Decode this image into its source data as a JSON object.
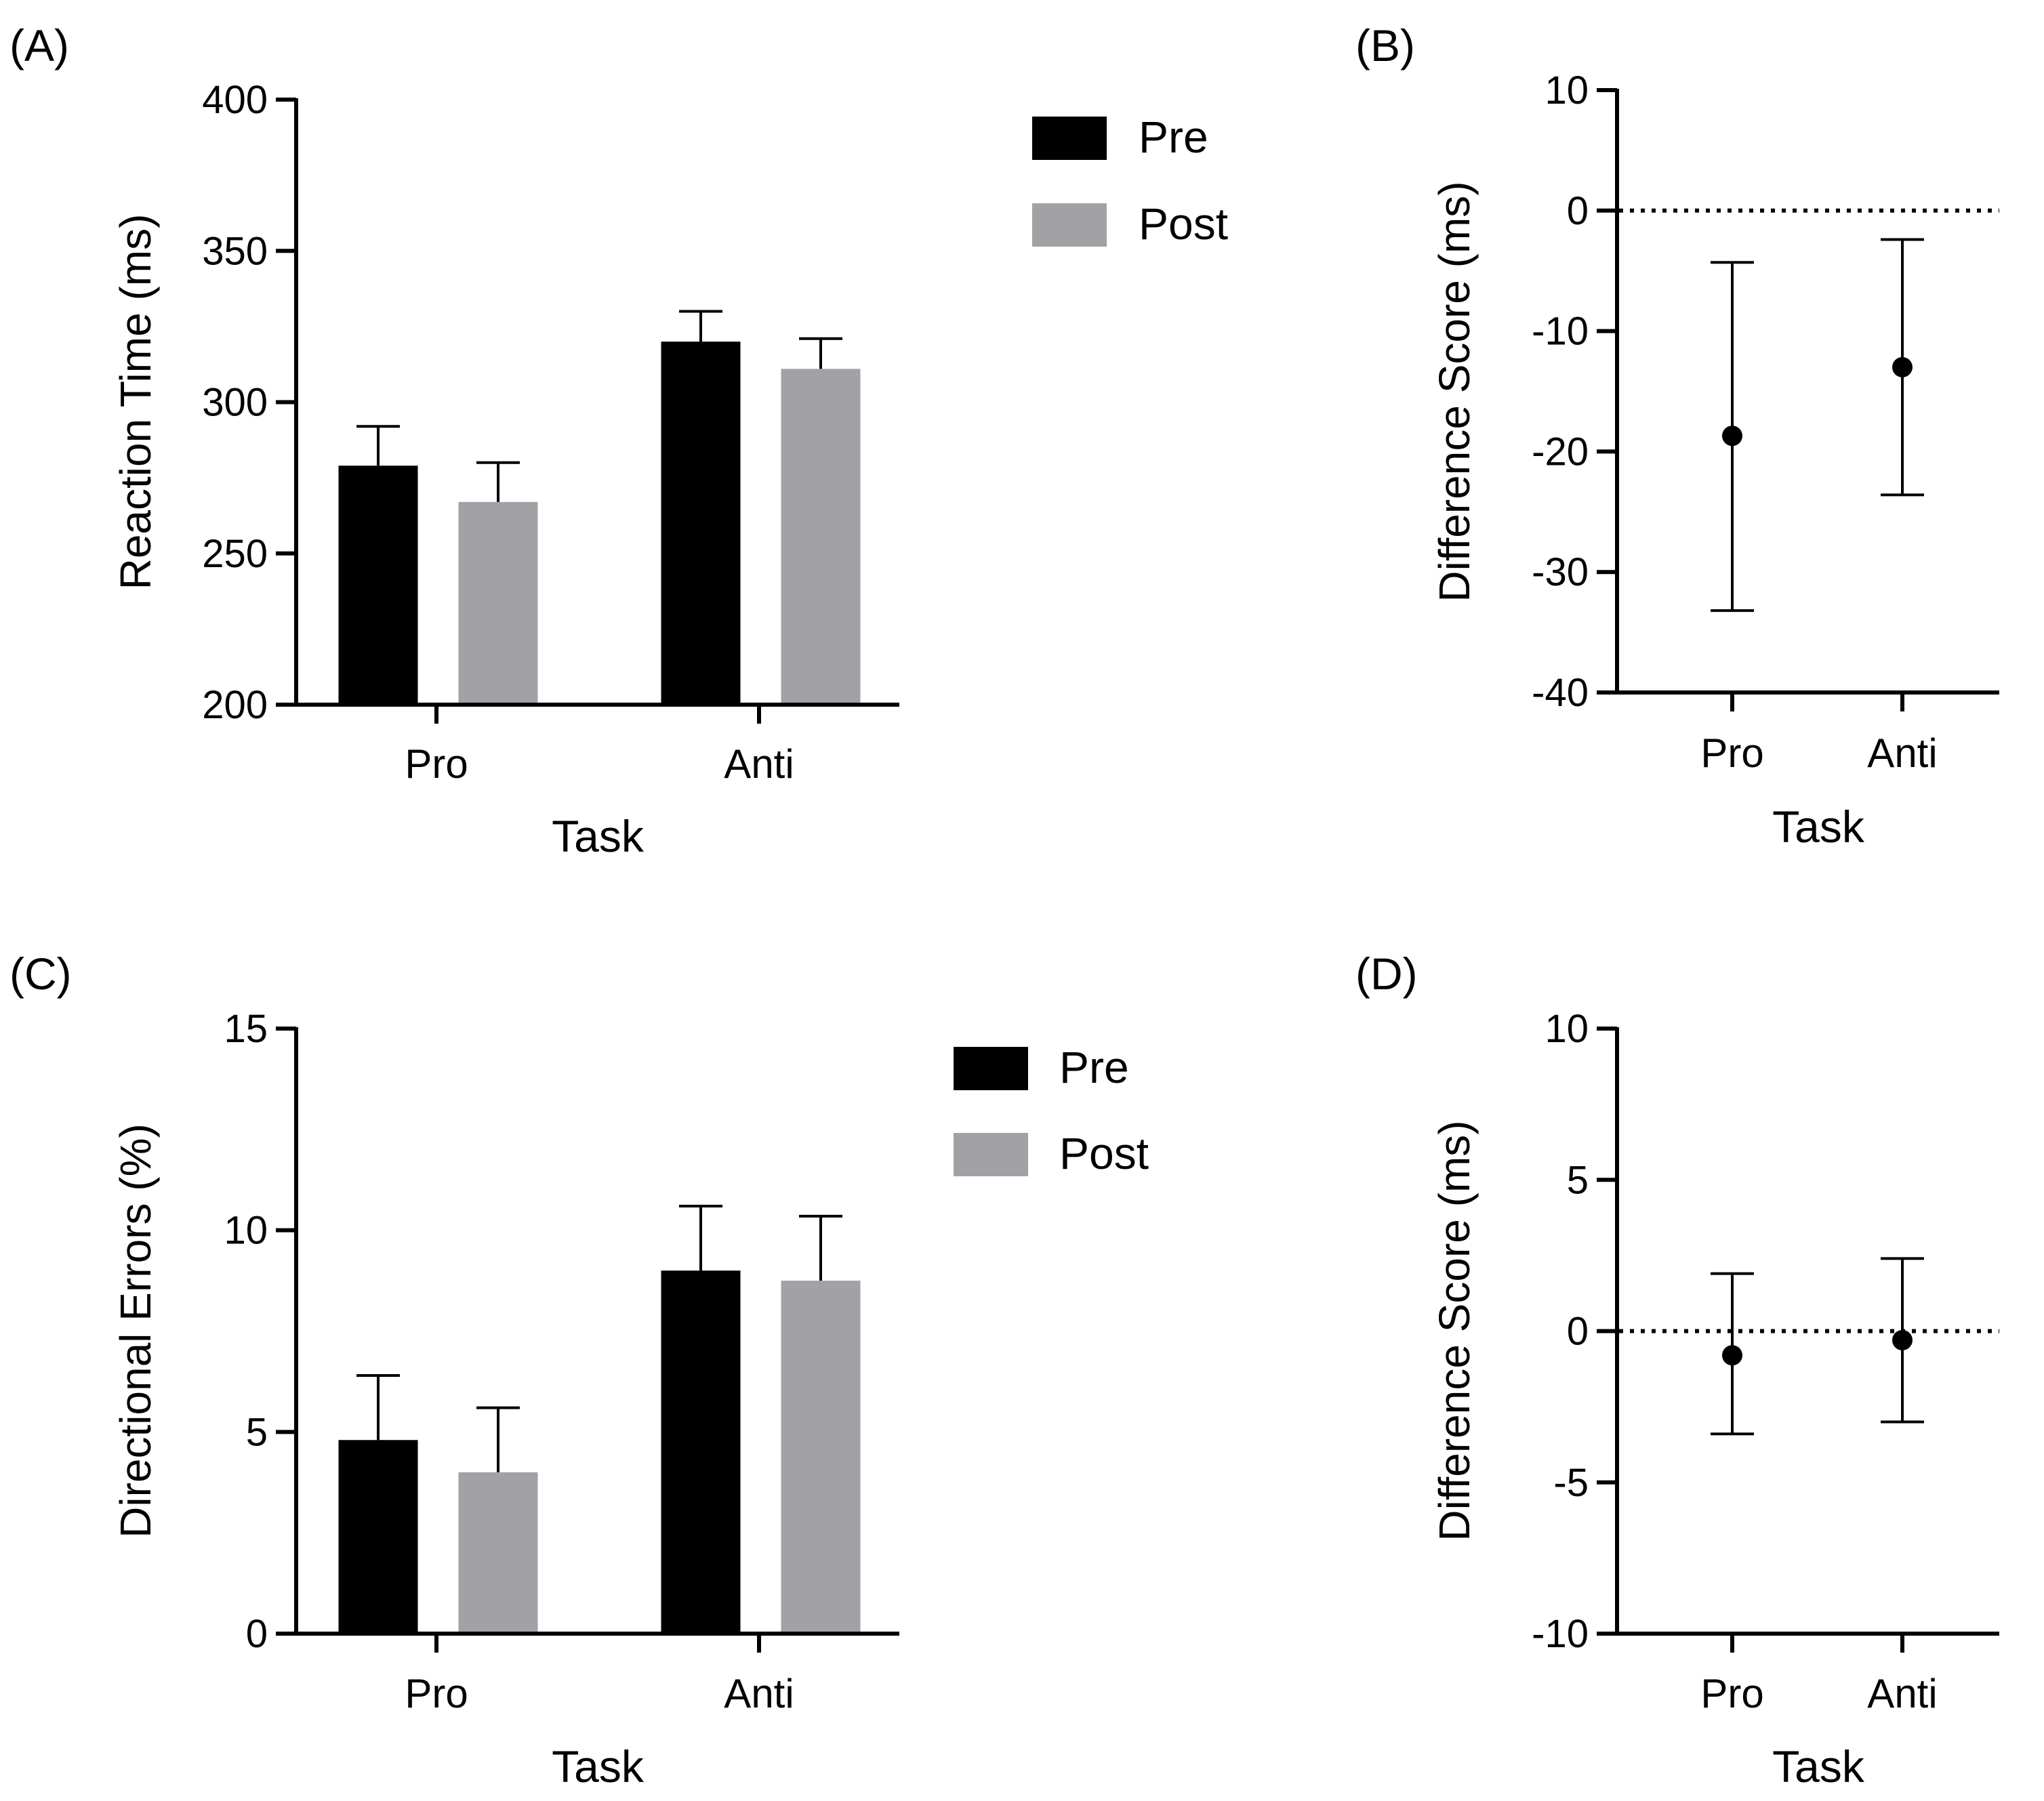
{
  "colors": {
    "pre": "#000000",
    "post": "#a2a2a6",
    "axis": "#000000"
  },
  "chart_data": [
    {
      "panel": "(A)",
      "type": "bar",
      "categories": [
        "Pro",
        "Anti"
      ],
      "series": [
        {
          "name": "Pre",
          "values": [
            279,
            320
          ],
          "errors": [
            13,
            10
          ]
        },
        {
          "name": "Post",
          "values": [
            267,
            311
          ],
          "errors": [
            13,
            10
          ]
        }
      ],
      "xlabel": "Task",
      "ylabel": "Reaction Time (ms)",
      "ylim": [
        200,
        400
      ],
      "yticks": [
        "200",
        "250",
        "300",
        "350",
        "400"
      ],
      "legend": "top-right"
    },
    {
      "panel": "(B)",
      "type": "scatter",
      "categories": [
        "Pro",
        "Anti"
      ],
      "values": [
        -18.7,
        -13.0
      ],
      "error_low": [
        -33.2,
        -23.6
      ],
      "error_high": [
        -4.3,
        -2.4
      ],
      "reference_line": 0,
      "xlabel": "Task",
      "ylabel": "Difference Score (ms)",
      "ylim": [
        -40,
        10
      ],
      "yticks": [
        "-40",
        "-30",
        "-20",
        "-10",
        "0",
        "10"
      ]
    },
    {
      "panel": "(C)",
      "type": "bar",
      "categories": [
        "Pro",
        "Anti"
      ],
      "series": [
        {
          "name": "Pre",
          "values": [
            4.8,
            9.0
          ],
          "errors": [
            1.6,
            1.6
          ]
        },
        {
          "name": "Post",
          "values": [
            4.0,
            8.75
          ],
          "errors": [
            1.6,
            1.6
          ]
        }
      ],
      "xlabel": "Task",
      "ylabel": "Directional Errors (%)",
      "ylim": [
        0,
        15
      ],
      "yticks": [
        "0",
        "5",
        "10",
        "15"
      ],
      "legend": "top-right"
    },
    {
      "panel": "(D)",
      "type": "scatter",
      "categories": [
        "Pro",
        "Anti"
      ],
      "values": [
        -0.8,
        -0.3
      ],
      "error_low": [
        -3.4,
        -3.0
      ],
      "error_high": [
        1.9,
        2.4
      ],
      "reference_line": 0,
      "xlabel": "Task",
      "ylabel": "Difference Score (ms)",
      "ylim": [
        -10,
        10
      ],
      "yticks": [
        "-10",
        "-5",
        "0",
        "5",
        "10"
      ]
    }
  ]
}
